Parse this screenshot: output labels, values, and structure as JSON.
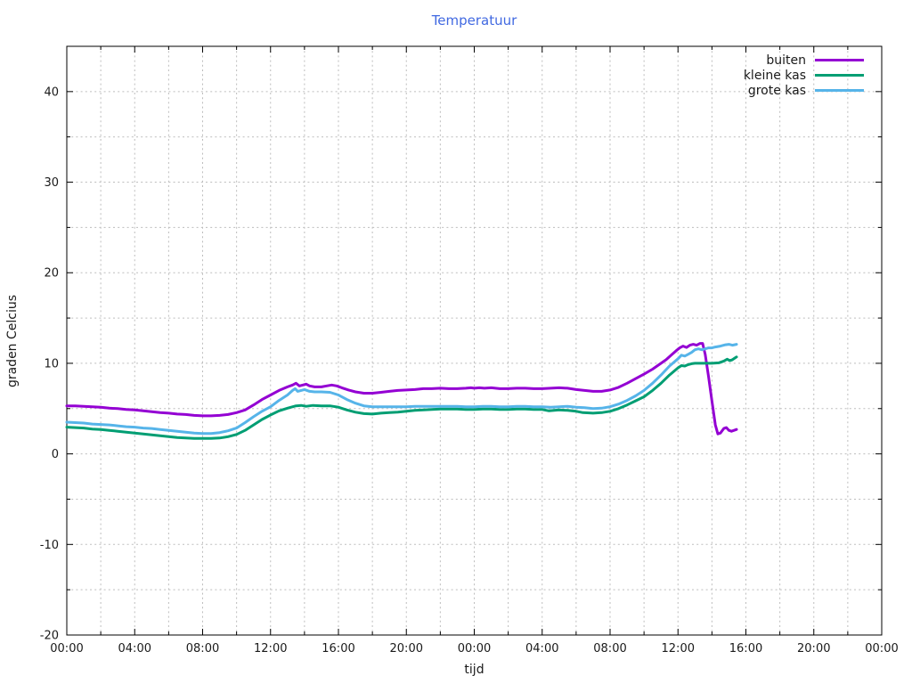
{
  "title": "Temperatuur",
  "title_color": "#4169e1",
  "colors": {
    "buiten": "#9400d3",
    "kleine_kas": "#009e73",
    "grote_kas": "#56b4e9",
    "grid": "#bdbdbd",
    "axis": "#000000",
    "text": "#1a1a1a"
  },
  "legend": {
    "position": "top-right",
    "items": [
      {
        "label": "buiten",
        "color": "#9400d3"
      },
      {
        "label": "kleine kas",
        "color": "#009e73"
      },
      {
        "label": "grote kas",
        "color": "#56b4e9"
      }
    ]
  },
  "chart_data": {
    "type": "line",
    "title": "Temperatuur",
    "xlabel": "tijd",
    "ylabel": "graden Celcius",
    "x_unit": "hours since first 00:00 (two consecutive days shown)",
    "xlim": [
      0,
      48
    ],
    "ylim": [
      -20,
      45
    ],
    "grid": "dotted, every 2 hours (x) and every 5 degrees (y)",
    "x_tick_hours": [
      0,
      4,
      8,
      12,
      16,
      20,
      24,
      28,
      32,
      36,
      40,
      44,
      48
    ],
    "x_tick_labels": [
      "00:00",
      "04:00",
      "08:00",
      "12:00",
      "16:00",
      "20:00",
      "00:00",
      "04:00",
      "08:00",
      "12:00",
      "16:00",
      "20:00",
      "00:00"
    ],
    "x_minor_every_hours": 2,
    "y_tick_values": [
      -20,
      -10,
      0,
      10,
      20,
      30,
      40
    ],
    "y_minor_every": 5,
    "series": [
      {
        "name": "buiten",
        "color": "#9400d3",
        "points": [
          [
            0,
            5.3
          ],
          [
            0.5,
            5.3
          ],
          [
            1,
            5.25
          ],
          [
            1.5,
            5.2
          ],
          [
            2,
            5.15
          ],
          [
            2.5,
            5.05
          ],
          [
            3,
            5.0
          ],
          [
            3.5,
            4.9
          ],
          [
            4,
            4.85
          ],
          [
            4.5,
            4.75
          ],
          [
            5,
            4.65
          ],
          [
            5.5,
            4.55
          ],
          [
            6,
            4.5
          ],
          [
            6.5,
            4.4
          ],
          [
            7,
            4.35
          ],
          [
            7.5,
            4.25
          ],
          [
            8,
            4.2
          ],
          [
            8.5,
            4.2
          ],
          [
            9,
            4.25
          ],
          [
            9.5,
            4.35
          ],
          [
            10,
            4.55
          ],
          [
            10.5,
            4.85
          ],
          [
            11,
            5.4
          ],
          [
            11.5,
            6.0
          ],
          [
            12,
            6.5
          ],
          [
            12.5,
            7.0
          ],
          [
            13,
            7.4
          ],
          [
            13.3,
            7.6
          ],
          [
            13.5,
            7.8
          ],
          [
            13.7,
            7.5
          ],
          [
            13.9,
            7.6
          ],
          [
            14.1,
            7.7
          ],
          [
            14.3,
            7.5
          ],
          [
            14.6,
            7.4
          ],
          [
            15,
            7.4
          ],
          [
            15.3,
            7.5
          ],
          [
            15.6,
            7.6
          ],
          [
            15.9,
            7.5
          ],
          [
            16.2,
            7.3
          ],
          [
            16.6,
            7.05
          ],
          [
            17,
            6.85
          ],
          [
            17.5,
            6.7
          ],
          [
            18,
            6.7
          ],
          [
            18.5,
            6.8
          ],
          [
            19,
            6.9
          ],
          [
            19.5,
            7.0
          ],
          [
            20,
            7.05
          ],
          [
            20.5,
            7.1
          ],
          [
            21,
            7.2
          ],
          [
            21.5,
            7.2
          ],
          [
            22,
            7.25
          ],
          [
            22.5,
            7.2
          ],
          [
            23,
            7.2
          ],
          [
            23.5,
            7.25
          ],
          [
            23.8,
            7.3
          ],
          [
            24,
            7.25
          ],
          [
            24.3,
            7.3
          ],
          [
            24.6,
            7.25
          ],
          [
            25,
            7.3
          ],
          [
            25.5,
            7.2
          ],
          [
            26,
            7.2
          ],
          [
            26.5,
            7.25
          ],
          [
            27,
            7.25
          ],
          [
            27.5,
            7.2
          ],
          [
            28,
            7.2
          ],
          [
            28.5,
            7.25
          ],
          [
            29,
            7.3
          ],
          [
            29.5,
            7.25
          ],
          [
            30,
            7.1
          ],
          [
            30.5,
            7.0
          ],
          [
            31,
            6.9
          ],
          [
            31.5,
            6.9
          ],
          [
            32,
            7.05
          ],
          [
            32.5,
            7.35
          ],
          [
            33,
            7.8
          ],
          [
            33.5,
            8.3
          ],
          [
            34,
            8.8
          ],
          [
            34.5,
            9.35
          ],
          [
            35,
            10.0
          ],
          [
            35.3,
            10.4
          ],
          [
            35.6,
            10.9
          ],
          [
            35.9,
            11.4
          ],
          [
            36.1,
            11.7
          ],
          [
            36.3,
            11.9
          ],
          [
            36.5,
            11.75
          ],
          [
            36.7,
            12.0
          ],
          [
            36.9,
            12.1
          ],
          [
            37.1,
            12.0
          ],
          [
            37.3,
            12.2
          ],
          [
            37.45,
            12.2
          ],
          [
            37.6,
            11.0
          ],
          [
            37.8,
            8.5
          ],
          [
            38,
            5.8
          ],
          [
            38.2,
            3.2
          ],
          [
            38.35,
            2.2
          ],
          [
            38.5,
            2.3
          ],
          [
            38.7,
            2.8
          ],
          [
            38.85,
            2.9
          ],
          [
            39,
            2.6
          ],
          [
            39.15,
            2.5
          ],
          [
            39.3,
            2.6
          ],
          [
            39.45,
            2.7
          ]
        ]
      },
      {
        "name": "kleine kas",
        "color": "#009e73",
        "points": [
          [
            0,
            2.95
          ],
          [
            0.5,
            2.9
          ],
          [
            1,
            2.85
          ],
          [
            1.5,
            2.75
          ],
          [
            2,
            2.7
          ],
          [
            2.5,
            2.6
          ],
          [
            3,
            2.5
          ],
          [
            3.5,
            2.4
          ],
          [
            4,
            2.3
          ],
          [
            4.5,
            2.2
          ],
          [
            5,
            2.1
          ],
          [
            5.5,
            2.0
          ],
          [
            6,
            1.9
          ],
          [
            6.5,
            1.8
          ],
          [
            7,
            1.75
          ],
          [
            7.5,
            1.7
          ],
          [
            8,
            1.7
          ],
          [
            8.5,
            1.7
          ],
          [
            9,
            1.75
          ],
          [
            9.5,
            1.9
          ],
          [
            10,
            2.15
          ],
          [
            10.5,
            2.6
          ],
          [
            11,
            3.2
          ],
          [
            11.5,
            3.8
          ],
          [
            12,
            4.3
          ],
          [
            12.5,
            4.75
          ],
          [
            13,
            5.05
          ],
          [
            13.5,
            5.3
          ],
          [
            13.8,
            5.35
          ],
          [
            14.1,
            5.25
          ],
          [
            14.5,
            5.35
          ],
          [
            15,
            5.3
          ],
          [
            15.5,
            5.3
          ],
          [
            16,
            5.15
          ],
          [
            16.5,
            4.85
          ],
          [
            17,
            4.6
          ],
          [
            17.5,
            4.45
          ],
          [
            18,
            4.4
          ],
          [
            18.5,
            4.5
          ],
          [
            19,
            4.55
          ],
          [
            19.5,
            4.6
          ],
          [
            20,
            4.7
          ],
          [
            20.5,
            4.8
          ],
          [
            21,
            4.85
          ],
          [
            21.5,
            4.9
          ],
          [
            22,
            4.95
          ],
          [
            22.5,
            4.95
          ],
          [
            23,
            4.95
          ],
          [
            23.5,
            4.9
          ],
          [
            24,
            4.9
          ],
          [
            24.5,
            4.95
          ],
          [
            25,
            4.95
          ],
          [
            25.5,
            4.9
          ],
          [
            26,
            4.9
          ],
          [
            26.5,
            4.95
          ],
          [
            27,
            4.95
          ],
          [
            27.5,
            4.9
          ],
          [
            28,
            4.9
          ],
          [
            28.4,
            4.75
          ],
          [
            28.7,
            4.8
          ],
          [
            29,
            4.85
          ],
          [
            29.5,
            4.8
          ],
          [
            30,
            4.7
          ],
          [
            30.4,
            4.55
          ],
          [
            31,
            4.5
          ],
          [
            31.5,
            4.55
          ],
          [
            32,
            4.7
          ],
          [
            32.5,
            5.0
          ],
          [
            33,
            5.4
          ],
          [
            33.5,
            5.85
          ],
          [
            34,
            6.3
          ],
          [
            34.5,
            7.0
          ],
          [
            35,
            7.8
          ],
          [
            35.5,
            8.7
          ],
          [
            36,
            9.5
          ],
          [
            36.2,
            9.75
          ],
          [
            36.4,
            9.7
          ],
          [
            36.6,
            9.85
          ],
          [
            36.8,
            9.95
          ],
          [
            37,
            10.0
          ],
          [
            37.5,
            10.0
          ],
          [
            38,
            10.0
          ],
          [
            38.4,
            10.05
          ],
          [
            38.7,
            10.25
          ],
          [
            38.9,
            10.45
          ],
          [
            39.05,
            10.3
          ],
          [
            39.2,
            10.4
          ],
          [
            39.45,
            10.7
          ]
        ]
      },
      {
        "name": "grote kas",
        "color": "#56b4e9",
        "points": [
          [
            0,
            3.5
          ],
          [
            0.5,
            3.45
          ],
          [
            1,
            3.4
          ],
          [
            1.5,
            3.3
          ],
          [
            2,
            3.25
          ],
          [
            2.5,
            3.2
          ],
          [
            3,
            3.1
          ],
          [
            3.5,
            3.0
          ],
          [
            4,
            2.95
          ],
          [
            4.5,
            2.85
          ],
          [
            5,
            2.8
          ],
          [
            5.5,
            2.7
          ],
          [
            6,
            2.6
          ],
          [
            6.5,
            2.5
          ],
          [
            7,
            2.4
          ],
          [
            7.5,
            2.3
          ],
          [
            8,
            2.25
          ],
          [
            8.5,
            2.25
          ],
          [
            9,
            2.35
          ],
          [
            9.5,
            2.55
          ],
          [
            10,
            2.85
          ],
          [
            10.5,
            3.45
          ],
          [
            11,
            4.1
          ],
          [
            11.5,
            4.7
          ],
          [
            12,
            5.2
          ],
          [
            12.5,
            5.9
          ],
          [
            13,
            6.5
          ],
          [
            13.3,
            7.0
          ],
          [
            13.45,
            7.2
          ],
          [
            13.6,
            6.9
          ],
          [
            13.8,
            7.0
          ],
          [
            14,
            7.1
          ],
          [
            14.3,
            6.9
          ],
          [
            14.6,
            6.85
          ],
          [
            15,
            6.85
          ],
          [
            15.5,
            6.8
          ],
          [
            16,
            6.5
          ],
          [
            16.5,
            6.0
          ],
          [
            17,
            5.6
          ],
          [
            17.5,
            5.3
          ],
          [
            18,
            5.2
          ],
          [
            18.5,
            5.2
          ],
          [
            19,
            5.2
          ],
          [
            19.5,
            5.2
          ],
          [
            20,
            5.2
          ],
          [
            20.5,
            5.25
          ],
          [
            21,
            5.25
          ],
          [
            21.5,
            5.25
          ],
          [
            22,
            5.25
          ],
          [
            22.5,
            5.25
          ],
          [
            23,
            5.25
          ],
          [
            23.5,
            5.2
          ],
          [
            24,
            5.2
          ],
          [
            24.5,
            5.25
          ],
          [
            25,
            5.25
          ],
          [
            25.5,
            5.2
          ],
          [
            26,
            5.2
          ],
          [
            26.5,
            5.25
          ],
          [
            27,
            5.25
          ],
          [
            27.5,
            5.2
          ],
          [
            28,
            5.2
          ],
          [
            28.5,
            5.15
          ],
          [
            29,
            5.2
          ],
          [
            29.5,
            5.25
          ],
          [
            30,
            5.15
          ],
          [
            30.5,
            5.1
          ],
          [
            31,
            5.0
          ],
          [
            31.5,
            5.05
          ],
          [
            32,
            5.2
          ],
          [
            32.5,
            5.5
          ],
          [
            33,
            5.9
          ],
          [
            33.5,
            6.4
          ],
          [
            34,
            7.0
          ],
          [
            34.5,
            7.8
          ],
          [
            35,
            8.7
          ],
          [
            35.5,
            9.7
          ],
          [
            36,
            10.5
          ],
          [
            36.2,
            10.9
          ],
          [
            36.4,
            10.8
          ],
          [
            36.6,
            11.0
          ],
          [
            36.8,
            11.2
          ],
          [
            37,
            11.5
          ],
          [
            37.2,
            11.6
          ],
          [
            37.4,
            11.5
          ],
          [
            37.6,
            11.6
          ],
          [
            37.8,
            11.7
          ],
          [
            38,
            11.7
          ],
          [
            38.2,
            11.8
          ],
          [
            38.5,
            11.9
          ],
          [
            38.8,
            12.05
          ],
          [
            39,
            12.1
          ],
          [
            39.2,
            12.0
          ],
          [
            39.45,
            12.1
          ]
        ]
      }
    ]
  }
}
